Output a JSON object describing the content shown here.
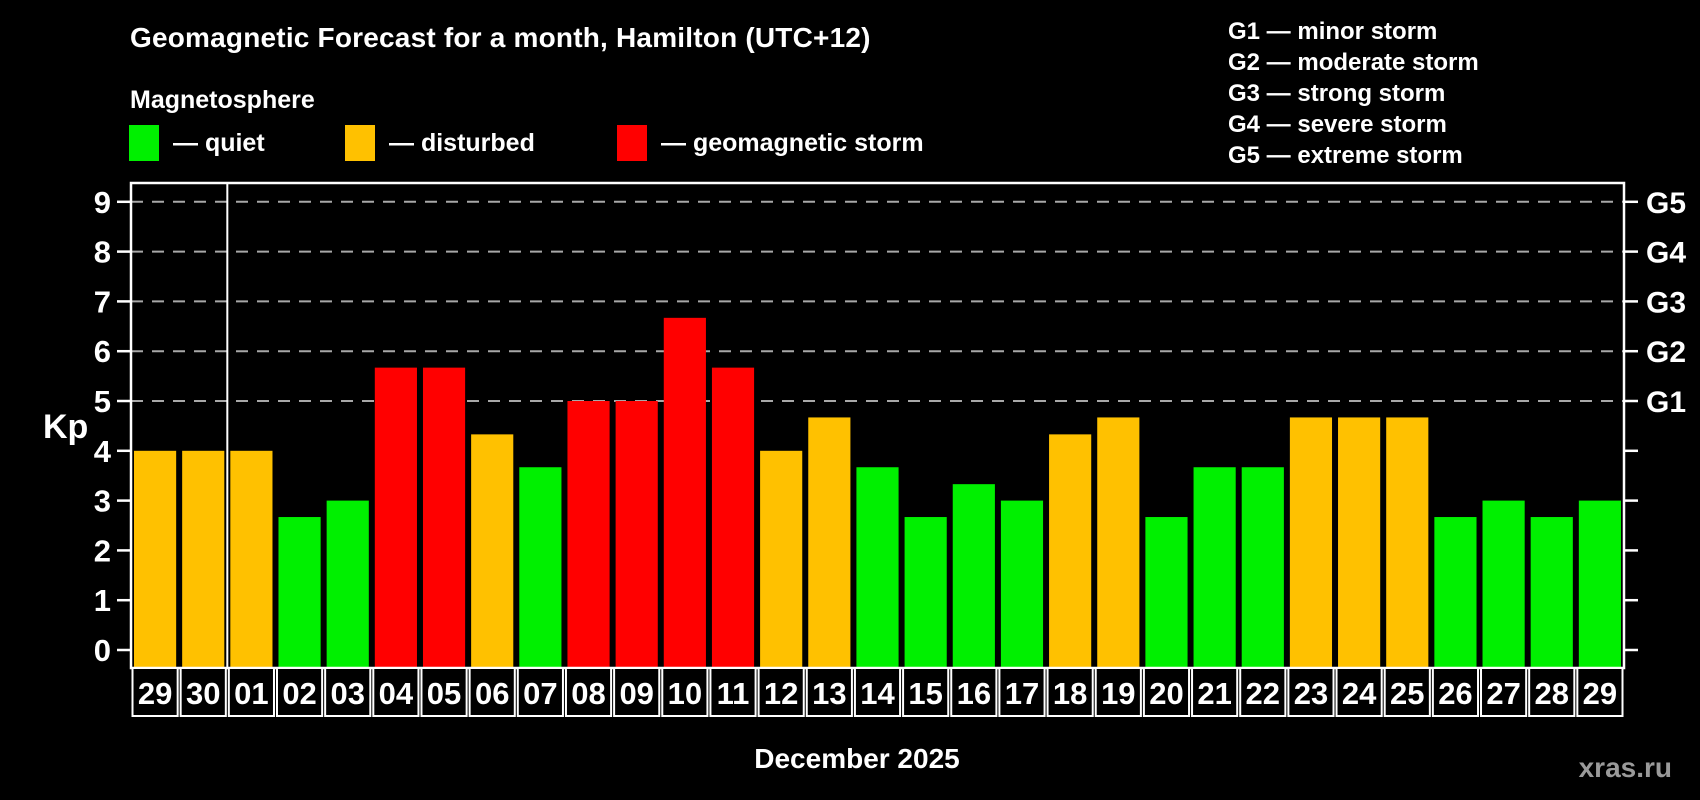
{
  "header": {
    "title": "Geomagnetic Forecast for a month, Hamilton (UTC+12)",
    "subtitle": "Magnetosphere"
  },
  "legend": {
    "items": [
      {
        "name": "quiet",
        "label": "— quiet",
        "color": "#00F000"
      },
      {
        "name": "disturbed",
        "label": "— disturbed",
        "color": "#FFC100"
      },
      {
        "name": "storm",
        "label": "— geomagnetic storm",
        "color": "#FF0000"
      }
    ]
  },
  "g_scale_legend": {
    "items": [
      {
        "label": "G1 — minor storm"
      },
      {
        "label": "G2 — moderate storm"
      },
      {
        "label": "G3 — strong storm"
      },
      {
        "label": "G4 — severe storm"
      },
      {
        "label": "G5 — extreme storm"
      }
    ]
  },
  "watermark": "xras.ru",
  "colors": {
    "background": "#000000",
    "axis": "#FFFFFF",
    "gridline": "#A8A8A8",
    "watermark": "#9A9A9A"
  },
  "chart_data": {
    "type": "bar",
    "title": "Geomagnetic Forecast for a month, Hamilton (UTC+12)",
    "xlabel": "December 2025",
    "ylabel": "Kp",
    "ylim": [
      0,
      9
    ],
    "y_ticks": [
      0,
      1,
      2,
      3,
      4,
      5,
      6,
      7,
      8,
      9
    ],
    "gridlines_at": [
      5,
      6,
      7,
      8,
      9
    ],
    "grid": "dashed horizontal at G-storm levels only",
    "legend_position": "top",
    "right_axis_labels": [
      {
        "value": 5,
        "label": "G1"
      },
      {
        "value": 6,
        "label": "G2"
      },
      {
        "value": 7,
        "label": "G3"
      },
      {
        "value": 8,
        "label": "G4"
      },
      {
        "value": 9,
        "label": "G5"
      }
    ],
    "month_boundary_after_index": 1,
    "categories": [
      "29",
      "30",
      "01",
      "02",
      "03",
      "04",
      "05",
      "06",
      "07",
      "08",
      "09",
      "10",
      "11",
      "12",
      "13",
      "14",
      "15",
      "16",
      "17",
      "18",
      "19",
      "20",
      "21",
      "22",
      "23",
      "24",
      "25",
      "26",
      "27",
      "28",
      "29"
    ],
    "values": [
      4,
      4,
      4,
      2.67,
      3,
      5.67,
      5.67,
      4.33,
      3.67,
      5,
      5,
      6.67,
      5.67,
      4,
      4.67,
      3.67,
      2.67,
      3.33,
      3,
      4.33,
      4.67,
      2.67,
      3.67,
      3.67,
      4.67,
      4.67,
      4.67,
      2.67,
      3,
      2.67,
      3
    ],
    "statuses": [
      "disturbed",
      "disturbed",
      "disturbed",
      "quiet",
      "quiet",
      "storm",
      "storm",
      "disturbed",
      "quiet",
      "storm",
      "storm",
      "storm",
      "storm",
      "disturbed",
      "disturbed",
      "quiet",
      "quiet",
      "quiet",
      "quiet",
      "disturbed",
      "disturbed",
      "quiet",
      "quiet",
      "quiet",
      "disturbed",
      "disturbed",
      "disturbed",
      "quiet",
      "quiet",
      "quiet",
      "quiet"
    ]
  }
}
